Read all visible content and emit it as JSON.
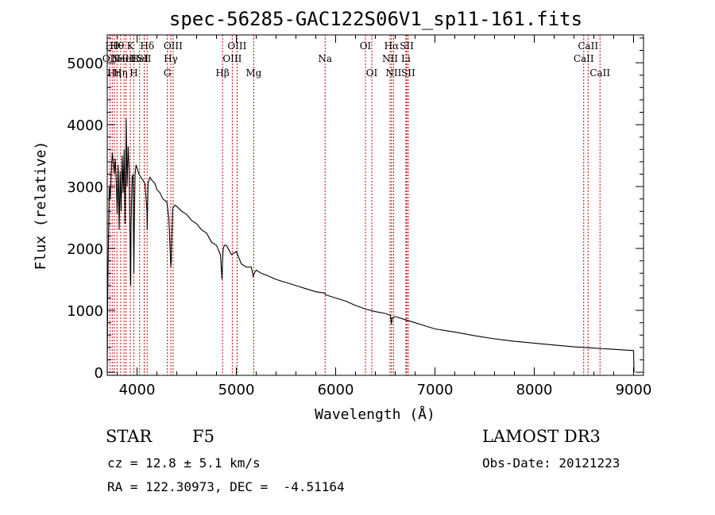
{
  "chart_data": {
    "type": "line",
    "title": "spec-56285-GAC122S06V1_sp11-161.fits",
    "xlabel": "Wavelength (Å)",
    "ylabel": "Flux (relative)",
    "xlim": [
      3700,
      9100
    ],
    "ylim": [
      -50,
      5450
    ],
    "xticks": [
      4000,
      5000,
      6000,
      7000,
      8000,
      9000
    ],
    "yticks": [
      0,
      1000,
      2000,
      3000,
      4000,
      5000
    ],
    "x_minor_step": 200,
    "y_minor_step": 200,
    "series": [
      {
        "name": "spectrum",
        "x": [
          3700,
          3705,
          3712,
          3720,
          3730,
          3740,
          3750,
          3760,
          3770,
          3780,
          3790,
          3800,
          3810,
          3820,
          3830,
          3840,
          3850,
          3860,
          3870,
          3880,
          3890,
          3900,
          3910,
          3920,
          3930,
          3933,
          3936,
          3940,
          3950,
          3960,
          3965,
          3968,
          3972,
          3980,
          3990,
          4000,
          4020,
          4040,
          4060,
          4080,
          4100,
          4102,
          4110,
          4130,
          4150,
          4180,
          4200,
          4230,
          4260,
          4300,
          4320,
          4330,
          4340,
          4345,
          4350,
          4360,
          4380,
          4400,
          4450,
          4500,
          4550,
          4600,
          4650,
          4700,
          4750,
          4800,
          4840,
          4855,
          4861,
          4868,
          4880,
          4900,
          4950,
          5000,
          5050,
          5100,
          5150,
          5170,
          5180,
          5200,
          5250,
          5300,
          5400,
          5500,
          5600,
          5700,
          5800,
          5890,
          5900,
          6000,
          6100,
          6200,
          6300,
          6400,
          6500,
          6550,
          6562,
          6570,
          6600,
          6700,
          6800,
          6900,
          7000,
          7200,
          7400,
          7600,
          7800,
          8000,
          8200,
          8400,
          8600,
          8800,
          9000,
          9005
        ],
        "y": [
          0,
          1250,
          2100,
          3000,
          2800,
          3200,
          3550,
          3400,
          3200,
          3450,
          3100,
          2550,
          3350,
          2300,
          3250,
          2600,
          3500,
          2900,
          3600,
          2400,
          4100,
          3000,
          3650,
          3300,
          2000,
          1500,
          1400,
          2400,
          3150,
          3200,
          2100,
          1600,
          2300,
          3200,
          3350,
          3300,
          3200,
          3150,
          3100,
          3050,
          2600,
          2300,
          3050,
          3150,
          3100,
          3050,
          2950,
          2900,
          2800,
          2750,
          2500,
          2100,
          1700,
          1800,
          2200,
          2650,
          2700,
          2680,
          2600,
          2550,
          2450,
          2400,
          2300,
          2250,
          2100,
          2050,
          1900,
          1500,
          1800,
          2000,
          2050,
          2050,
          1900,
          1950,
          1750,
          1700,
          1700,
          1550,
          1600,
          1650,
          1600,
          1570,
          1500,
          1450,
          1400,
          1350,
          1300,
          1280,
          1250,
          1200,
          1150,
          1080,
          1020,
          980,
          950,
          920,
          780,
          880,
          900,
          850,
          800,
          750,
          700,
          650,
          590,
          540,
          500,
          470,
          440,
          410,
          390,
          370,
          350,
          0
        ]
      }
    ],
    "lines": [
      {
        "wave": 3727,
        "label": "OII",
        "row": 2
      },
      {
        "wave": 3750,
        "label": "Hθ",
        "row": 1
      },
      {
        "wave": 3771,
        "label": "Hη",
        "row": 3
      },
      {
        "wave": 3798,
        "label": "Hθ",
        "row": 1
      },
      {
        "wave": 3835,
        "label": "Hη",
        "row": 3
      },
      {
        "wave": 3869,
        "label": "NeIII",
        "row": 2
      },
      {
        "wave": 3889,
        "label": "HeI",
        "row": 2
      },
      {
        "wave": 3933,
        "label": "K",
        "row": 1
      },
      {
        "wave": 3968,
        "label": "H",
        "row": 3
      },
      {
        "wave": 4026,
        "label": "HeI",
        "row": 2
      },
      {
        "wave": 4072,
        "label": "SII",
        "row": 2
      },
      {
        "wave": 4102,
        "label": "Hδ",
        "row": 1
      },
      {
        "wave": 4305,
        "label": "G",
        "row": 3
      },
      {
        "wave": 4340,
        "label": "Hγ",
        "row": 2
      },
      {
        "wave": 4363,
        "label": "OIII",
        "row": 1
      },
      {
        "wave": 4861,
        "label": "Hβ",
        "row": 3
      },
      {
        "wave": 4959,
        "label": "OIII",
        "row": 2
      },
      {
        "wave": 5007,
        "label": "OIII",
        "row": 1
      },
      {
        "wave": 5175,
        "label": "Mg",
        "row": 3
      },
      {
        "wave": 5894,
        "label": "Na",
        "row": 2
      },
      {
        "wave": 6300,
        "label": "OI",
        "row": 1
      },
      {
        "wave": 6364,
        "label": "OI",
        "row": 3
      },
      {
        "wave": 6548,
        "label": "NII",
        "row": 2
      },
      {
        "wave": 6563,
        "label": "Hα",
        "row": 1
      },
      {
        "wave": 6583,
        "label": "NII",
        "row": 3
      },
      {
        "wave": 6707,
        "label": "Li",
        "row": 2
      },
      {
        "wave": 6716,
        "label": "SII",
        "row": 1
      },
      {
        "wave": 6731,
        "label": "SII",
        "row": 3
      },
      {
        "wave": 8498,
        "label": "CaII",
        "row": 2
      },
      {
        "wave": 8542,
        "label": "CaII",
        "row": 1
      },
      {
        "wave": 8662,
        "label": "CaII",
        "row": 3
      }
    ]
  },
  "info": {
    "class": "STAR",
    "subclass": "F5",
    "survey": "LAMOST DR3",
    "cz": "cz = 12.8 ± 5.1 km/s",
    "obs_date": "Obs-Date: 20121223",
    "radec": "RA = 122.30973, DEC =  -4.51164"
  },
  "colors": {
    "line_marker": "#cc0000",
    "spectrum": "#000000",
    "axes": "#000000"
  }
}
